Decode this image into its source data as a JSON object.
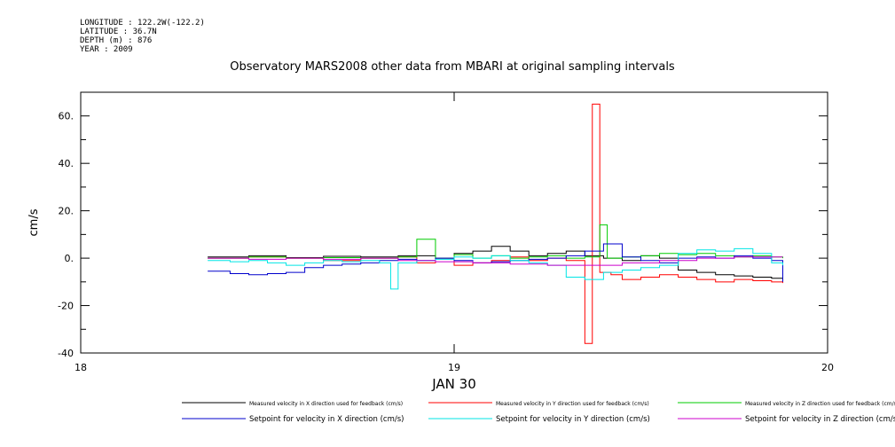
{
  "meta": {
    "longitude": "LONGITUDE : 122.2W(-122.2)",
    "latitude": "LATITUDE : 36.7N",
    "depth": "DEPTH (m) : 876",
    "year": "YEAR : 2009"
  },
  "chart_data": {
    "type": "line",
    "title": "Observatory MARS2008 other data from MBARI at original sampling intervals",
    "xlabel": "JAN 30",
    "ylabel": "cm/s",
    "xlim": [
      18,
      20
    ],
    "ylim": [
      -40,
      70
    ],
    "x_ticks": [
      "18",
      "19",
      "20"
    ],
    "y_ticks": [
      "60.",
      "40.",
      "20.",
      "0.",
      "-20",
      "-40"
    ],
    "legend_position": "bottom",
    "series": [
      {
        "name": "Measured velocity in X direction used for feedback (cm/s)",
        "color": "#000000",
        "x": [
          18.34,
          18.45,
          18.55,
          18.65,
          18.75,
          18.85,
          18.95,
          19.0,
          19.05,
          19.1,
          19.15,
          19.2,
          19.25,
          19.3,
          19.35,
          19.4,
          19.45,
          19.5,
          19.55,
          19.6,
          19.65,
          19.7,
          19.75,
          19.8,
          19.85,
          19.88
        ],
        "y": [
          0.5,
          1.0,
          0.2,
          0.8,
          0.5,
          1.0,
          0.0,
          2.0,
          3.0,
          5.0,
          3.0,
          1.0,
          2.0,
          3.0,
          1.0,
          0.0,
          -1.0,
          1.0,
          0.0,
          -5.0,
          -6.0,
          -7.0,
          -7.5,
          -8.0,
          -8.5,
          -9.0
        ]
      },
      {
        "name": "Measured velocity in Y direction used for feedback (cm/s)",
        "color": "#ff0000",
        "x": [
          18.34,
          18.45,
          18.55,
          18.65,
          18.75,
          18.85,
          18.9,
          18.95,
          19.0,
          19.05,
          19.1,
          19.15,
          19.2,
          19.25,
          19.3,
          19.35,
          19.37,
          19.39,
          19.42,
          19.45,
          19.5,
          19.55,
          19.6,
          19.65,
          19.7,
          19.75,
          19.8,
          19.85,
          19.88
        ],
        "y": [
          0.0,
          0.5,
          0.0,
          -1.0,
          0.0,
          0.5,
          -2.0,
          0.0,
          -3.0,
          -2.0,
          -1.0,
          0.5,
          -1.0,
          0.0,
          -1.0,
          -36.0,
          65.0,
          -6.0,
          -7.0,
          -9.0,
          -8.0,
          -7.0,
          -8.0,
          -9.0,
          -10.0,
          -9.0,
          -9.5,
          -10.0,
          -10.5
        ]
      },
      {
        "name": "Measured velocity in Z direction used for feedback (cm/s)",
        "color": "#00cc00",
        "x": [
          18.34,
          18.45,
          18.55,
          18.65,
          18.75,
          18.85,
          18.9,
          18.95,
          19.0,
          19.05,
          19.1,
          19.15,
          19.2,
          19.25,
          19.3,
          19.35,
          19.39,
          19.41,
          19.45,
          19.5,
          19.55,
          19.6,
          19.65,
          19.7,
          19.75,
          19.8,
          19.85,
          19.88
        ],
        "y": [
          0.0,
          0.5,
          0.0,
          0.2,
          0.0,
          0.5,
          8.0,
          0.0,
          1.5,
          0.0,
          1.0,
          0.0,
          0.5,
          1.0,
          0.0,
          0.5,
          14.0,
          0.0,
          0.5,
          1.0,
          2.0,
          1.5,
          2.0,
          1.0,
          0.5,
          1.0,
          0.5,
          0.0
        ]
      },
      {
        "name": "Setpoint for velocity in X direction (cm/s)",
        "color": "#0000cc",
        "x": [
          18.34,
          18.4,
          18.45,
          18.5,
          18.55,
          18.6,
          18.65,
          18.7,
          18.75,
          18.8,
          18.85,
          18.9,
          18.95,
          19.0,
          19.05,
          19.1,
          19.15,
          19.2,
          19.25,
          19.3,
          19.35,
          19.4,
          19.45,
          19.5,
          19.55,
          19.6,
          19.65,
          19.7,
          19.75,
          19.8,
          19.85,
          19.88
        ],
        "y": [
          -5.5,
          -6.5,
          -7.0,
          -6.5,
          -6.0,
          -4.0,
          -3.0,
          -2.5,
          -2.0,
          -1.0,
          -0.5,
          -1.0,
          0.0,
          -1.0,
          -2.0,
          -1.5,
          -1.0,
          -0.5,
          0.0,
          1.0,
          3.0,
          6.0,
          0.5,
          -1.0,
          -2.0,
          0.0,
          0.5,
          0.0,
          1.0,
          0.0,
          -1.0,
          -10.0
        ]
      },
      {
        "name": "Setpoint for velocity in Y direction (cm/s)",
        "color": "#00e5e5",
        "x": [
          18.34,
          18.4,
          18.45,
          18.5,
          18.55,
          18.6,
          18.65,
          18.7,
          18.75,
          18.8,
          18.83,
          18.85,
          18.9,
          18.95,
          19.0,
          19.05,
          19.1,
          19.15,
          19.2,
          19.25,
          19.3,
          19.35,
          19.4,
          19.45,
          19.5,
          19.55,
          19.6,
          19.65,
          19.7,
          19.75,
          19.8,
          19.85,
          19.88
        ],
        "y": [
          -1.0,
          -1.5,
          -1.0,
          -2.0,
          -3.0,
          -2.0,
          -1.0,
          -1.5,
          -1.0,
          -2.0,
          -13.0,
          -2.0,
          -1.0,
          -0.5,
          0.5,
          0.0,
          1.0,
          -1.0,
          -2.0,
          -3.0,
          -8.0,
          -9.0,
          -6.0,
          -5.0,
          -4.0,
          -3.0,
          2.0,
          3.5,
          3.0,
          4.0,
          2.0,
          -2.0,
          -3.0
        ]
      },
      {
        "name": "Setpoint for velocity in Z direction (cm/s)",
        "color": "#cc00cc",
        "x": [
          18.34,
          18.45,
          18.55,
          18.65,
          18.75,
          18.85,
          18.95,
          19.05,
          19.15,
          19.25,
          19.35,
          19.45,
          19.55,
          19.65,
          19.75,
          19.85,
          19.88
        ],
        "y": [
          0.0,
          -0.5,
          0.0,
          -0.5,
          0.0,
          -1.0,
          -1.5,
          -2.0,
          -2.5,
          -3.0,
          -3.0,
          -2.0,
          -1.0,
          0.0,
          0.5,
          0.5,
          0.5
        ]
      }
    ]
  }
}
